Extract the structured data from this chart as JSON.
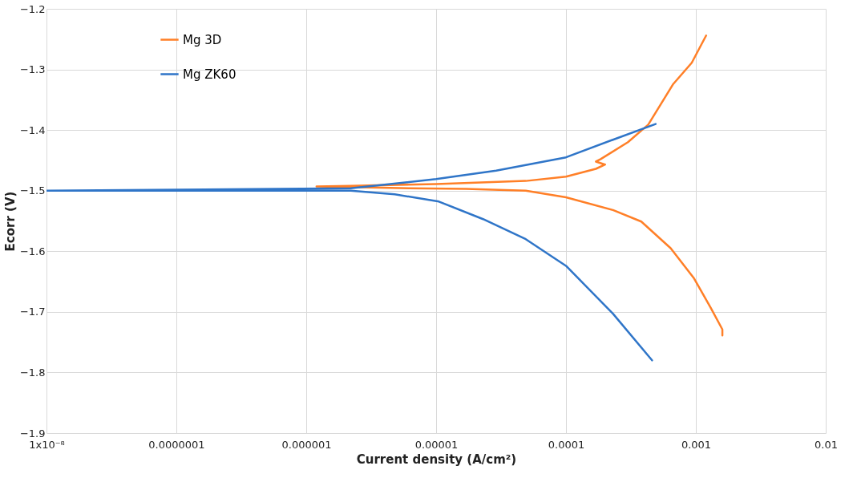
{
  "chart_data": {
    "type": "line",
    "xlabel": "Current density (A/cm²)",
    "ylabel": "Ecorr (V)",
    "log": "x",
    "grid": true,
    "legend": "top left",
    "line_style": "solid",
    "marker": "none",
    "xlim": [
      1e-08,
      0.01
    ],
    "ylim": [
      -1.9,
      -1.2
    ],
    "xticks": [
      {
        "value": 1e-08,
        "label": "1x10⁻⁸"
      },
      {
        "value": 1e-07,
        "label": "0.0000001"
      },
      {
        "value": 1e-06,
        "label": "0.000001"
      },
      {
        "value": 1e-05,
        "label": "0.00001"
      },
      {
        "value": 0.0001,
        "label": "0.0001"
      },
      {
        "value": 0.001,
        "label": "0.001"
      },
      {
        "value": 0.01,
        "label": "0.01"
      }
    ],
    "yticks": [
      {
        "value": -1.9,
        "label": "−1.9"
      },
      {
        "value": -1.8,
        "label": "−1.8"
      },
      {
        "value": -1.7,
        "label": "−1.7"
      },
      {
        "value": -1.6,
        "label": "−1.6"
      },
      {
        "value": -1.5,
        "label": "−1.5"
      },
      {
        "value": -1.4,
        "label": "−1.4"
      },
      {
        "value": -1.3,
        "label": "−1.3"
      },
      {
        "value": -1.2,
        "label": "−1.2"
      }
    ],
    "series": [
      {
        "name": "Mg 3D",
        "color": "#ff7f27",
        "x": [
          0.0016,
          0.0016,
          0.0013,
          0.00097,
          0.00064,
          0.00038,
          0.00023,
          0.0001,
          4.9e-05,
          1.7e-05,
          6.2e-06,
          2.2e-06,
          1.2e-06,
          2.2e-06,
          1e-05,
          4.9e-05,
          0.0001,
          0.00017,
          0.0002,
          0.00017,
          0.000185,
          0.0003,
          0.00043,
          0.00067,
          0.00093,
          0.0012
        ],
        "values": [
          -1.739,
          -1.729,
          -1.693,
          -1.645,
          -1.595,
          -1.551,
          -1.532,
          -1.511,
          -1.5,
          -1.497,
          -1.496,
          -1.494,
          -1.493,
          -1.492,
          -1.489,
          -1.484,
          -1.477,
          -1.464,
          -1.457,
          -1.452,
          -1.448,
          -1.42,
          -1.391,
          -1.324,
          -1.289,
          -1.244
        ]
      },
      {
        "name": "Mg ZK60",
        "color": "#2f75c8",
        "x": [
          0.00046,
          0.00023,
          0.0001,
          4.9e-05,
          2.3e-05,
          1.05e-05,
          4.8e-06,
          2.2e-06,
          1e-08,
          1.36e-08,
          1e-08,
          2.2e-06,
          1e-05,
          2.9e-05,
          0.0001,
          0.00023,
          0.00049
        ],
        "values": [
          -1.78,
          -1.703,
          -1.624,
          -1.58,
          -1.547,
          -1.518,
          -1.506,
          -1.5,
          -1.5,
          -1.5,
          -1.5,
          -1.496,
          -1.481,
          -1.467,
          -1.445,
          -1.416,
          -1.39
        ]
      }
    ]
  }
}
